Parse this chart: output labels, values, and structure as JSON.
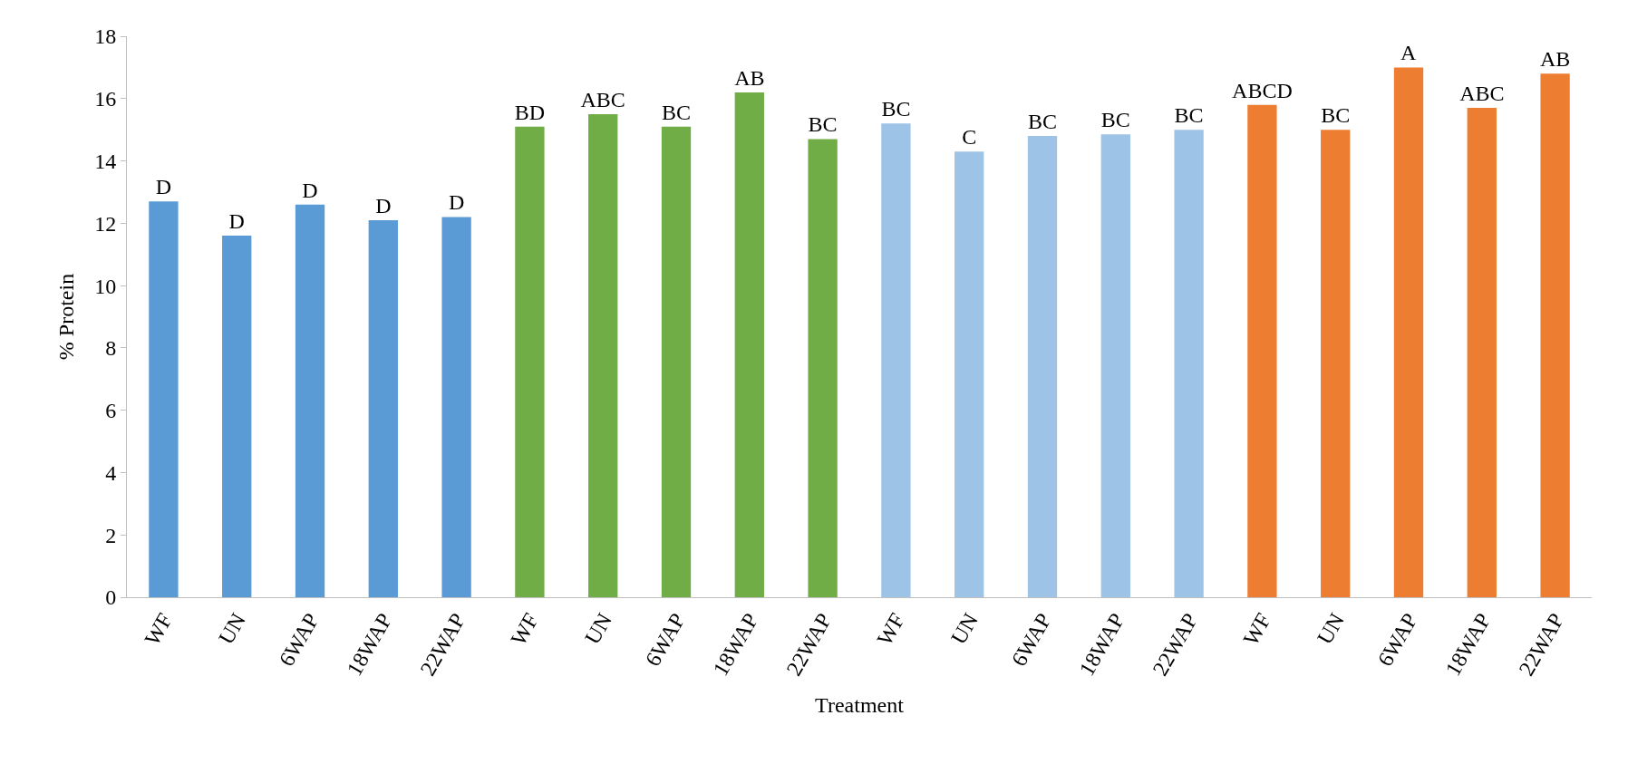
{
  "chart_data": {
    "type": "bar",
    "xlabel": "Treatment",
    "ylabel": "% Protein",
    "categories": [
      "WF",
      "UN",
      "6WAP",
      "18WAP",
      "22WAP",
      "WF",
      "UN",
      "6WAP",
      "18WAP",
      "22WAP",
      "WF",
      "UN",
      "6WAP",
      "18WAP",
      "22WAP",
      "WF",
      "UN",
      "6WAP",
      "18WAP",
      "22WAP"
    ],
    "values": [
      12.7,
      11.6,
      12.6,
      12.1,
      12.2,
      15.1,
      15.5,
      15.1,
      16.2,
      14.7,
      15.2,
      14.3,
      14.8,
      14.85,
      15.0,
      15.8,
      15.0,
      17.0,
      15.7,
      16.8
    ],
    "colors": [
      "#5b9bd5",
      "#5b9bd5",
      "#5b9bd5",
      "#5b9bd5",
      "#5b9bd5",
      "#70ad47",
      "#70ad47",
      "#70ad47",
      "#70ad47",
      "#70ad47",
      "#9dc3e6",
      "#9dc3e6",
      "#9dc3e6",
      "#9dc3e6",
      "#9dc3e6",
      "#ed7d31",
      "#ed7d31",
      "#ed7d31",
      "#ed7d31",
      "#ed7d31"
    ],
    "value_labels": [
      "D",
      "D",
      "D",
      "D",
      "D",
      "BD",
      "ABC",
      "BC",
      "AB",
      "BC",
      "BC",
      "C",
      "BC",
      "BC",
      "BC",
      "ABCD",
      "BC",
      "A",
      "ABC",
      "AB"
    ],
    "ylim": [
      0,
      18
    ],
    "yticks": [
      0,
      2,
      4,
      6,
      8,
      10,
      12,
      14,
      16,
      18
    ],
    "grid": false
  }
}
